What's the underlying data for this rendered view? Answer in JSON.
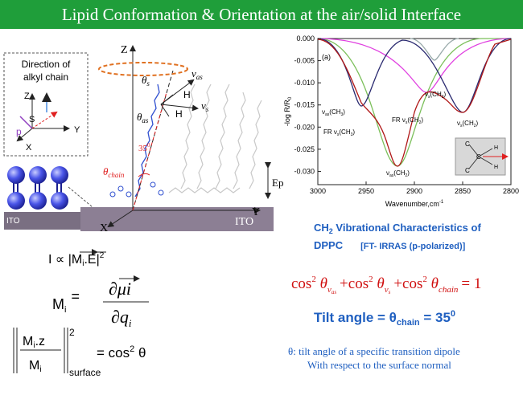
{
  "header": {
    "title": "Lipid Conformation & Orientation at the air/solid Interface"
  },
  "diagram": {
    "inset_title": [
      "Direction of",
      "alkyl chain"
    ],
    "inset_axes": {
      "z": "Z",
      "y": "Y",
      "x": "X",
      "s": "S",
      "p": "p"
    },
    "axes": {
      "z": "Z",
      "y": "Y",
      "x": "X"
    },
    "theta_s": {
      "t": "θ",
      "sub": "s"
    },
    "theta_as": {
      "t": "θ",
      "sub": "as"
    },
    "nu_as": {
      "t": "ν",
      "sub": "as"
    },
    "nu_s": {
      "t": "ν",
      "sub": "s"
    },
    "h": [
      "H",
      "H"
    ],
    "angle": {
      "t": "35",
      "sup": "0"
    },
    "theta_chain": {
      "t": "θ",
      "sub": "chain"
    },
    "ep": "Ep",
    "ito": [
      "ITO",
      "ITO"
    ]
  },
  "spectrum": {
    "panel": "(a)",
    "ylabel": {
      "t": "-log R/R",
      "sub": "0"
    },
    "xlabel": {
      "t": "Wavenumber,cm",
      "sup": "-1"
    },
    "xlim": [
      3000,
      2800
    ],
    "ylim": [
      -0.033,
      0
    ],
    "xticks": [
      3000,
      2950,
      2900,
      2850,
      2800
    ],
    "yticks": [
      {
        "value": 0,
        "label": "0.000"
      },
      {
        "value": -0.005,
        "label": "-0.005"
      },
      {
        "value": -0.01,
        "label": "-0.010"
      },
      {
        "value": -0.015,
        "label": "-0.015"
      },
      {
        "value": -0.02,
        "label": "-0.020"
      },
      {
        "value": -0.025,
        "label": "-0.025"
      },
      {
        "value": -0.03,
        "label": "-0.030"
      }
    ],
    "peak_labels": [
      {
        "pre": "ν",
        "sub": "as",
        "mid": "(CH",
        "sub2": "3",
        "end": ")"
      },
      {
        "pre": "FR ν",
        "sub": "s",
        "mid": "(CH",
        "sub2": "3",
        "end": ")"
      },
      {
        "pre": "FR ν",
        "sub": "s",
        "mid": "(CH",
        "sub2": "2",
        "end": ")"
      },
      {
        "pre": "ν",
        "sub": "s",
        "mid": "(CH",
        "sub2": "3",
        "end": ")"
      },
      {
        "pre": "ν",
        "sub": "s",
        "mid": "(CH",
        "sub2": "2",
        "end": ")"
      },
      {
        "pre": "ν",
        "sub": "as",
        "mid": "(CH",
        "sub2": "2",
        "end": ")"
      }
    ],
    "inset": {
      "c": [
        "C",
        "C",
        "C"
      ],
      "h": [
        "H",
        "H"
      ]
    }
  },
  "characteristics": {
    "a": "CH",
    "sub": "2",
    "b": " Vibrational Characteristics of",
    "c": "DPPC",
    "d": "[FT- IRRAS (p-polarized)]"
  },
  "equation": {
    "terms": [
      {
        "f": "cos",
        "p": "2",
        "t": " θ",
        "s": "ν",
        "ss": "as"
      },
      {
        "f": "cos",
        "p": "2",
        "t": " θ",
        "s": "ν",
        "ss": "s"
      },
      {
        "f": "cos",
        "p": "2",
        "t": " θ",
        "s": "chain"
      }
    ],
    "ops": [
      "+",
      "+",
      "= 1"
    ]
  },
  "tilt": {
    "a": "Tilt angle =  θ",
    "sub": "chain",
    "b": " = 35",
    "sup": "0"
  },
  "note": [
    "θ:  tilt angle of  a specific transition dipole",
    "With respect to the surface normal"
  ],
  "formulas": {
    "f1": {
      "a": "I ∝ |M",
      "sub": "i",
      "b": ".E|",
      "sup": "2"
    },
    "f2": {
      "m": "M",
      "msub": "i",
      "eq": "=",
      "num": "∂μi",
      "den": "∂q",
      "densub": "i"
    },
    "f3": {
      "num": "M",
      "numsub": "i",
      "numb": ".z",
      "den": "M",
      "densub": "i",
      "sup": "2",
      "surface": "surface",
      "rhs": "= cos",
      "rhssup": "2",
      "theta": " θ"
    }
  }
}
